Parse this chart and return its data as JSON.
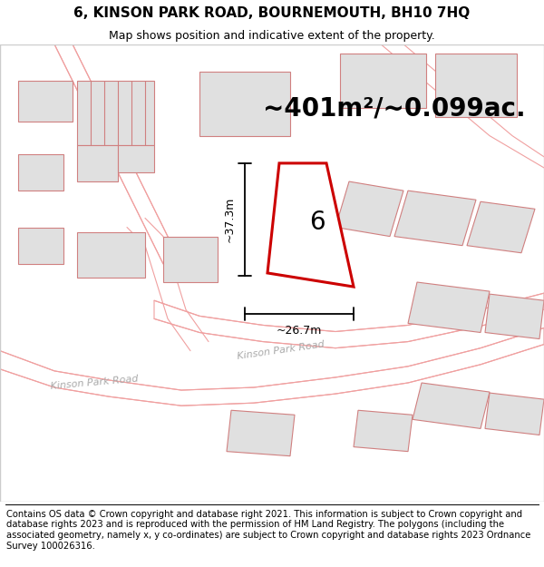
{
  "title": "6, KINSON PARK ROAD, BOURNEMOUTH, BH10 7HQ",
  "subtitle": "Map shows position and indicative extent of the property.",
  "area_text": "~401m²/~0.099ac.",
  "label_6": "6",
  "dim_height": "~37.3m",
  "dim_width": "~26.7m",
  "bg_color": "#ffffff",
  "road_color": "#f0a0a0",
  "building_fill": "#e0e0e0",
  "building_edge": "#d08080",
  "highlight_color": "#cc0000",
  "highlight_lw": 2.2,
  "title_fontsize": 11,
  "subtitle_fontsize": 9,
  "area_fontsize": 20,
  "dim_fontsize": 9,
  "label_fontsize": 20,
  "footer_fontsize": 7.2,
  "footer_lines": [
    "Contains OS data © Crown copyright and database right 2021. This information is subject to Crown copyright and database rights 2023 and is reproduced with the permission of",
    "HM Land Registry. The polygons (including the associated geometry, namely x, y co-ordinates) are subject to Crown copyright and database rights 2023 Ordnance Survey",
    "100026316."
  ]
}
